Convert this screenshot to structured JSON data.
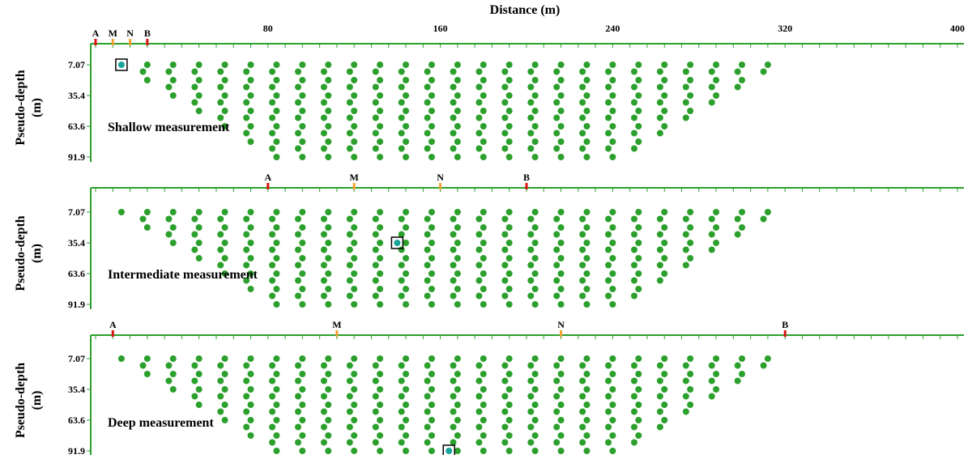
{
  "figure": {
    "x_axis_title": "Distance (m)",
    "y_axis_label_line1": "Pseudo-depth",
    "y_axis_label_line2": "(m)",
    "distance_ticks": [
      80,
      160,
      240,
      320,
      400
    ],
    "depth_ticks": [
      "7.07",
      "35.4",
      "63.6",
      "91.9"
    ],
    "colors": {
      "axis": "#2ca02c",
      "datum": "#2ca02c",
      "selected": "#1aa39a",
      "current_electrode": "#dd1111",
      "potential_electrode": "#f5a030",
      "highlight_box": "#000000"
    },
    "panels": [
      {
        "label": "Shallow measurement",
        "electrodes": [
          {
            "name": "A",
            "x": 0,
            "kind": "current"
          },
          {
            "name": "M",
            "x": 8,
            "kind": "potential"
          },
          {
            "name": "N",
            "x": 16,
            "kind": "potential"
          },
          {
            "name": "B",
            "x": 24,
            "kind": "current"
          }
        ],
        "selected_point": {
          "x": 12,
          "level": 1
        }
      },
      {
        "label": "Intermediate measurement",
        "electrodes": [
          {
            "name": "A",
            "x": 80,
            "kind": "current"
          },
          {
            "name": "M",
            "x": 120,
            "kind": "potential"
          },
          {
            "name": "N",
            "x": 160,
            "kind": "potential"
          },
          {
            "name": "B",
            "x": 200,
            "kind": "current"
          }
        ],
        "selected_point": {
          "x": 140,
          "level": 5
        }
      },
      {
        "label": "Deep measurement",
        "electrodes": [
          {
            "name": "A",
            "x": 8,
            "kind": "current"
          },
          {
            "name": "M",
            "x": 112,
            "kind": "potential"
          },
          {
            "name": "N",
            "x": 216,
            "kind": "potential"
          },
          {
            "name": "B",
            "x": 320,
            "kind": "current"
          }
        ],
        "selected_point": {
          "x": 164,
          "level": 13
        }
      }
    ],
    "datum_pattern": {
      "electrode_spacing_m": 4,
      "levels": 13,
      "first_x_m": 12,
      "last_x_m": 316
    }
  }
}
